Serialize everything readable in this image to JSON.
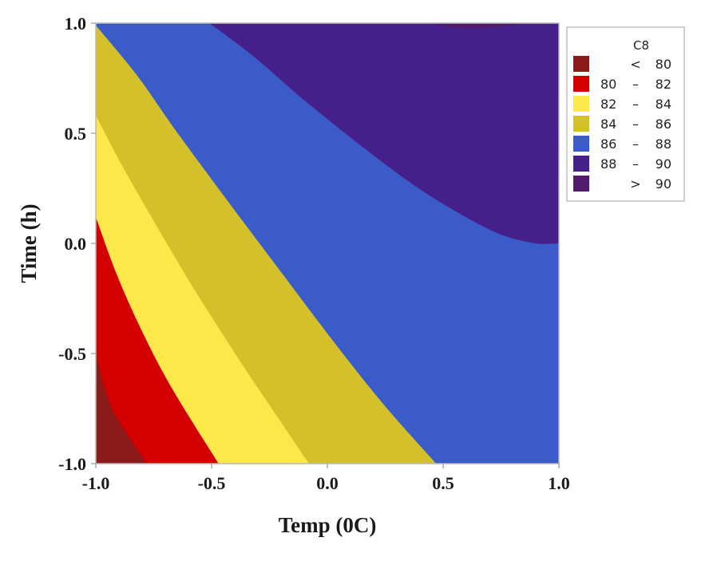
{
  "chart_data": {
    "type": "contour",
    "xlabel": "Temp (0C)",
    "ylabel": "Time (h)",
    "xlim": [
      -1.0,
      1.0
    ],
    "ylim": [
      -1.0,
      1.0
    ],
    "xticks": [
      "-1.0",
      "-0.5",
      "0.0",
      "0.5",
      "1.0"
    ],
    "yticks": [
      "-1.0",
      "-0.5",
      "0.0",
      "0.5",
      "1.0"
    ],
    "grid": false,
    "legend_position": "top-right",
    "legend": {
      "title": "C8",
      "entries": [
        {
          "op": "<",
          "low": "",
          "high": "80",
          "color": "#8b1a1a"
        },
        {
          "op": "–",
          "low": "80",
          "high": "82",
          "color": "#d40000"
        },
        {
          "op": "–",
          "low": "82",
          "high": "84",
          "color": "#fde84a"
        },
        {
          "op": "–",
          "low": "84",
          "high": "86",
          "color": "#d4c02a"
        },
        {
          "op": "–",
          "low": "86",
          "high": "88",
          "color": "#3a5bc8"
        },
        {
          "op": "–",
          "low": "88",
          "high": "90",
          "color": "#46208a"
        },
        {
          "op": ">",
          "low": "",
          "high": "90",
          "color": "#521a6b"
        }
      ]
    },
    "contour_levels": [
      80,
      82,
      84,
      86,
      88,
      90
    ],
    "contours": [
      {
        "level": 80,
        "points": [
          [
            -1.0,
            -0.5
          ],
          [
            -0.93,
            -0.75
          ],
          [
            -0.78,
            -1.0
          ]
        ]
      },
      {
        "level": 82,
        "points": [
          [
            -1.0,
            0.12
          ],
          [
            -0.91,
            -0.14
          ],
          [
            -0.8,
            -0.4
          ],
          [
            -0.67,
            -0.66
          ],
          [
            -0.47,
            -1.0
          ]
        ]
      },
      {
        "level": 84,
        "points": [
          [
            -1.0,
            0.58
          ],
          [
            -0.89,
            0.36
          ],
          [
            -0.76,
            0.12
          ],
          [
            -0.58,
            -0.2
          ],
          [
            -0.38,
            -0.53
          ],
          [
            -0.24,
            -0.75
          ],
          [
            -0.08,
            -1.0
          ]
        ]
      },
      {
        "level": 86,
        "points": [
          [
            -1.0,
            0.99
          ],
          [
            -0.82,
            0.76
          ],
          [
            -0.66,
            0.52
          ],
          [
            -0.45,
            0.22
          ],
          [
            -0.2,
            -0.13
          ],
          [
            0.03,
            -0.45
          ],
          [
            0.25,
            -0.74
          ],
          [
            0.47,
            -1.0
          ]
        ]
      },
      {
        "level": 88,
        "points": [
          [
            -0.51,
            1.0
          ],
          [
            -0.32,
            0.85
          ],
          [
            -0.1,
            0.65
          ],
          [
            0.15,
            0.44
          ],
          [
            0.38,
            0.26
          ],
          [
            0.58,
            0.13
          ],
          [
            0.75,
            0.04
          ],
          [
            0.9,
            0.0
          ],
          [
            1.0,
            0.0
          ]
        ]
      },
      {
        "level": 90,
        "points": [
          [
            0.42,
            1.0
          ],
          [
            0.55,
            0.98
          ],
          [
            0.7,
            0.98
          ],
          [
            0.87,
            1.0
          ]
        ]
      }
    ]
  }
}
